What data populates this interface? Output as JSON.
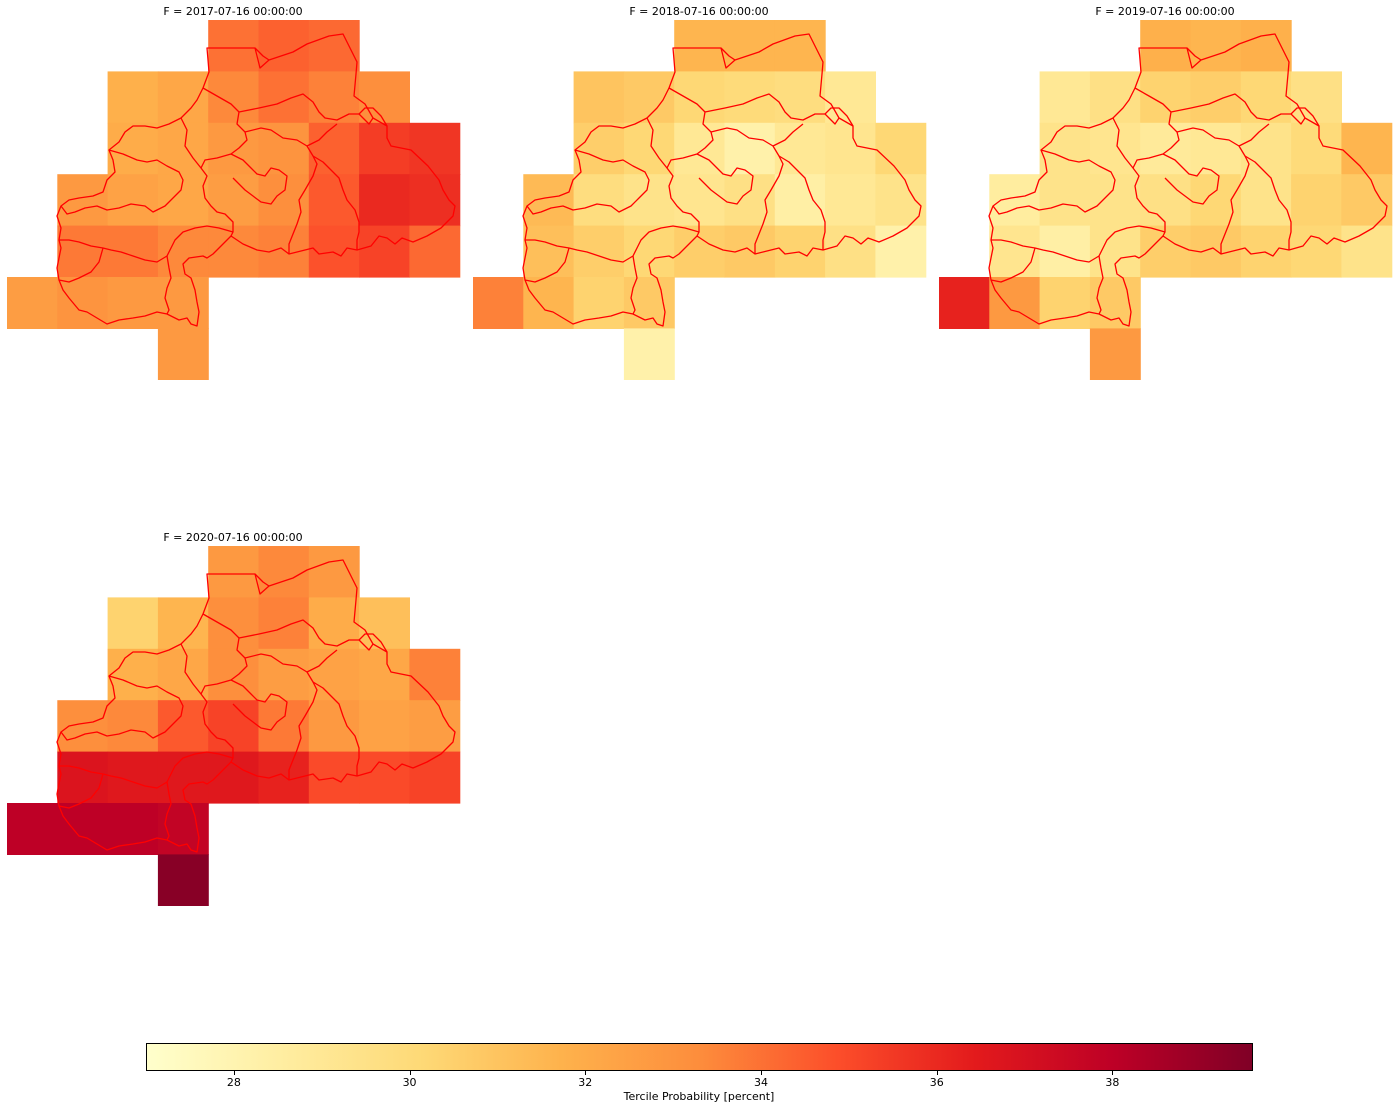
{
  "panels": [
    {
      "title": "F = 2017-07-16 00:00:00",
      "values": [
        [
          null,
          null,
          null,
          null,
          34.0,
          34.4,
          34.2,
          null,
          null
        ],
        [
          null,
          null,
          31.8,
          32.2,
          33.4,
          34.0,
          33.6,
          33.2,
          null
        ],
        [
          null,
          null,
          32.0,
          32.2,
          32.8,
          33.0,
          34.4,
          35.4,
          35.6
        ],
        [
          null,
          32.8,
          32.4,
          32.2,
          32.6,
          33.2,
          34.6,
          36.0,
          35.8
        ],
        [
          null,
          33.8,
          33.8,
          33.4,
          33.4,
          33.6,
          34.8,
          35.2,
          34.2
        ],
        [
          32.6,
          33.0,
          32.8,
          32.8,
          null,
          null,
          null,
          null,
          null
        ],
        [
          null,
          null,
          null,
          32.8,
          null,
          null,
          null,
          null,
          null
        ]
      ]
    },
    {
      "title": "F = 2018-07-16 00:00:00",
      "values": [
        [
          null,
          null,
          null,
          null,
          31.6,
          31.6,
          31.6,
          null,
          null
        ],
        [
          null,
          null,
          31.0,
          30.8,
          30.2,
          30.0,
          29.8,
          29.0,
          null
        ],
        [
          null,
          null,
          30.6,
          30.2,
          29.0,
          28.2,
          29.0,
          29.2,
          30.2
        ],
        [
          null,
          31.4,
          29.8,
          29.4,
          29.2,
          29.6,
          28.4,
          29.0,
          29.4
        ],
        [
          null,
          31.2,
          30.6,
          30.2,
          30.6,
          30.8,
          30.4,
          29.6,
          28.2
        ],
        [
          33.6,
          31.6,
          30.4,
          30.8,
          null,
          null,
          null,
          null,
          null
        ],
        [
          null,
          null,
          null,
          28.2,
          null,
          null,
          null,
          null,
          null
        ]
      ]
    },
    {
      "title": "F = 2019-07-16 00:00:00",
      "values": [
        [
          null,
          null,
          null,
          null,
          31.8,
          31.6,
          31.8,
          null,
          null
        ],
        [
          null,
          null,
          29.0,
          29.6,
          30.4,
          30.6,
          30.2,
          29.6,
          null
        ],
        [
          null,
          null,
          29.4,
          29.2,
          28.8,
          29.0,
          29.4,
          30.0,
          31.6
        ],
        [
          null,
          28.6,
          29.4,
          29.4,
          29.6,
          30.2,
          29.4,
          30.4,
          30.8
        ],
        [
          null,
          29.2,
          28.4,
          29.4,
          30.6,
          30.8,
          30.4,
          30.2,
          29.4
        ],
        [
          36.2,
          32.8,
          30.4,
          30.8,
          null,
          null,
          null,
          null,
          null
        ],
        [
          null,
          null,
          null,
          32.8,
          null,
          null,
          null,
          null,
          null
        ]
      ]
    },
    {
      "title": "F = 2020-07-16 00:00:00",
      "values": [
        [
          null,
          null,
          null,
          null,
          32.8,
          33.4,
          32.8,
          null,
          null
        ],
        [
          null,
          null,
          30.4,
          31.6,
          33.2,
          33.6,
          32.0,
          31.2,
          null
        ],
        [
          null,
          null,
          31.8,
          32.2,
          33.2,
          32.6,
          32.4,
          32.2,
          33.6
        ],
        [
          null,
          33.2,
          33.4,
          34.6,
          35.2,
          33.8,
          32.8,
          32.4,
          32.6
        ],
        [
          null,
          36.8,
          36.6,
          36.6,
          36.6,
          36.2,
          35.0,
          35.0,
          35.2
        ],
        [
          38.0,
          38.0,
          38.0,
          37.8,
          null,
          null,
          null,
          null,
          null
        ],
        [
          null,
          null,
          null,
          39.4,
          null,
          null,
          null,
          null,
          null
        ]
      ]
    }
  ],
  "colorbar": {
    "label": "Tercile Probability [percent]",
    "vmin": 27.0,
    "vmax": 39.6,
    "ticks": [
      "28",
      "30",
      "32",
      "34",
      "36",
      "38"
    ],
    "colormap": "YlOrRd",
    "colormap_stops": [
      "#ffffcc",
      "#ffeda0",
      "#fed976",
      "#feb24c",
      "#fd8d3c",
      "#fc4e2a",
      "#e31a1c",
      "#bd0026",
      "#800026"
    ]
  },
  "boundary_color": "#ff0000"
}
